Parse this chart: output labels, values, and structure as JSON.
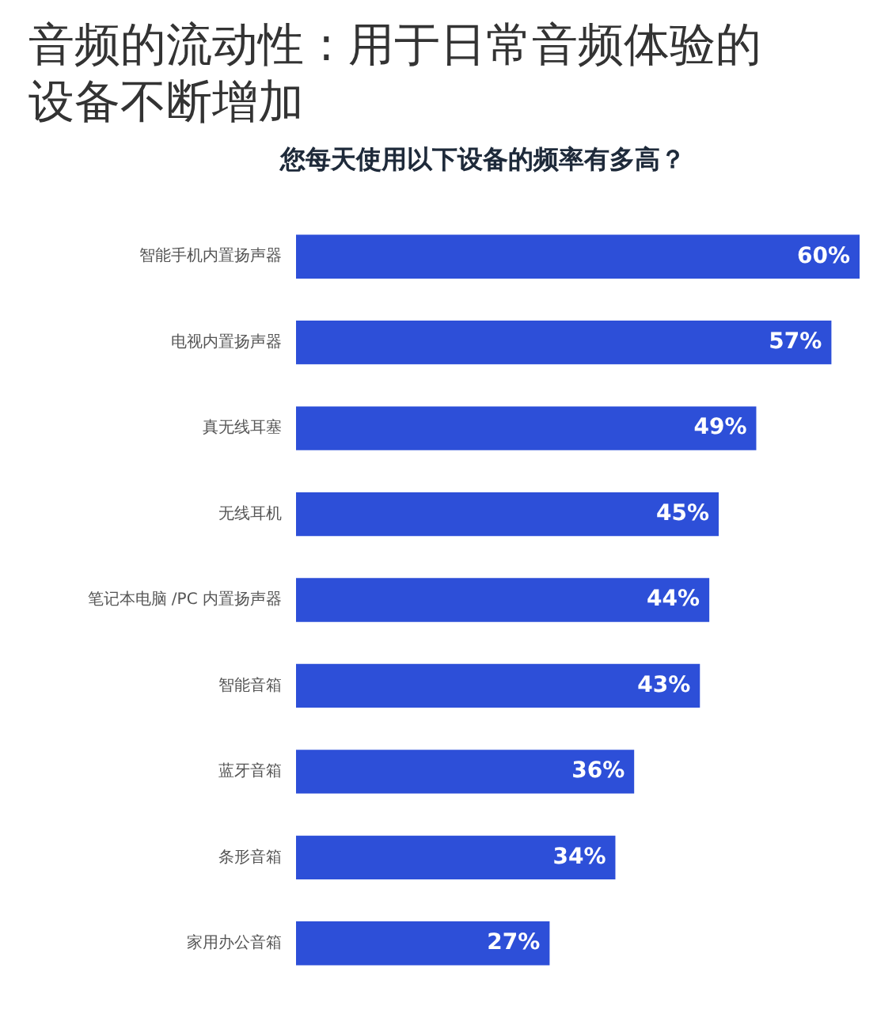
{
  "chart_data": {
    "type": "bar",
    "orientation": "horizontal",
    "title": "音频的流动性 : 用于日常音频体验的设备不断增加",
    "subtitle": "您每天使用以下设备的频率有多高？",
    "categories": [
      "智能手机内置扬声器",
      "电视内置扬声器",
      "真无线耳塞",
      "无线耳机",
      "笔记本电脑 /PC 内置扬声器",
      "智能音箱",
      "蓝牙音箱",
      "条形音箱",
      "家用办公音箱"
    ],
    "values": [
      60,
      57,
      49,
      45,
      44,
      43,
      36,
      34,
      27
    ],
    "value_labels": [
      "60%",
      "57%",
      "49%",
      "45%",
      "44%",
      "43%",
      "36%",
      "34%",
      "27%"
    ],
    "color": "#2d4fd8",
    "xlim": [
      0,
      60
    ],
    "tick_labels": "y"
  }
}
